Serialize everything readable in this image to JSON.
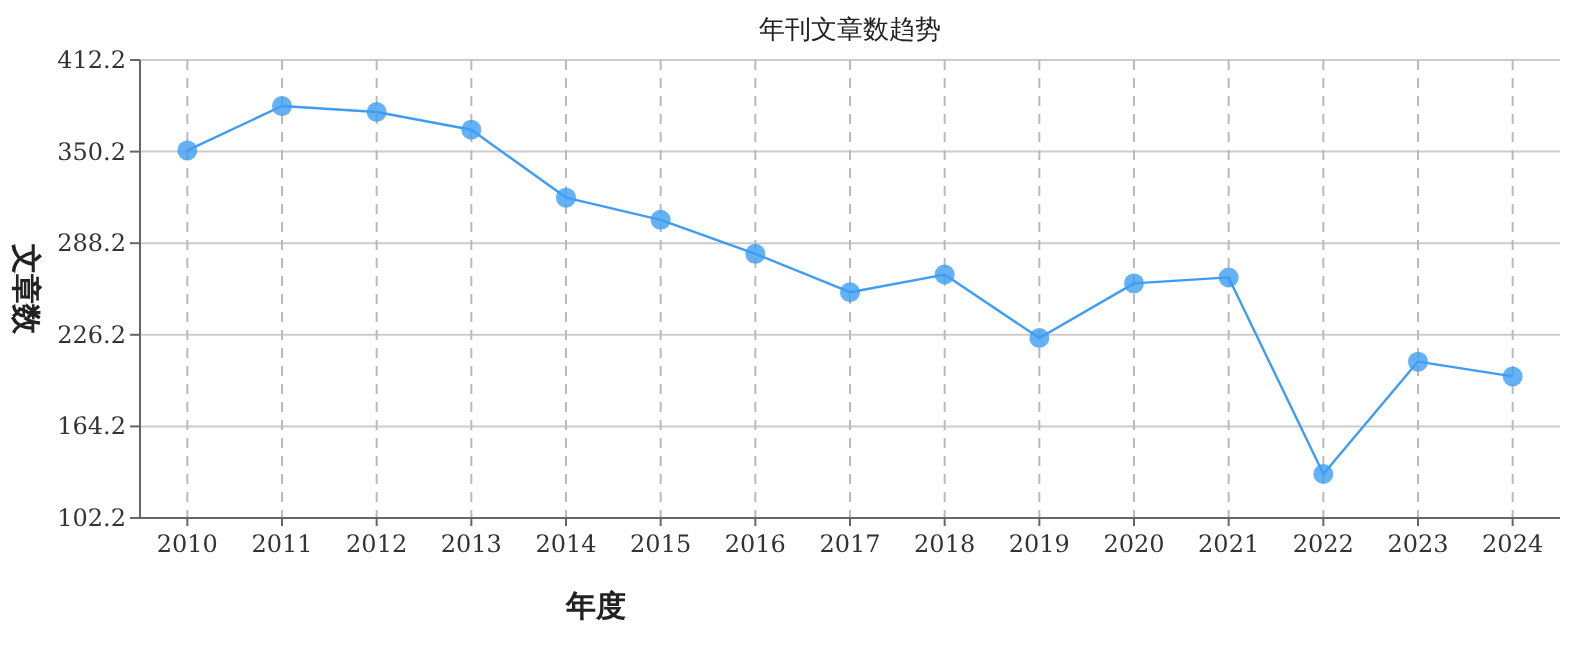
{
  "chart_data": {
    "type": "line",
    "title": "年刊文章数趋势",
    "xlabel": "年度",
    "ylabel": "文章数",
    "categories": [
      "2010",
      "2011",
      "2012",
      "2013",
      "2014",
      "2015",
      "2016",
      "2017",
      "2018",
      "2019",
      "2020",
      "2021",
      "2022",
      "2023",
      "2024"
    ],
    "series": [
      {
        "color": "#3d9df2",
        "values": [
          351,
          381,
          377,
          365,
          319,
          304,
          281,
          255,
          267,
          224,
          261,
          265,
          132,
          208,
          198
        ]
      }
    ],
    "ylim": [
      102.2,
      412.2
    ],
    "yticks": [
      102.2,
      164.2,
      226.2,
      288.2,
      350.2,
      412.2
    ],
    "grid": true,
    "marker": "circle",
    "line_style": "solid"
  }
}
